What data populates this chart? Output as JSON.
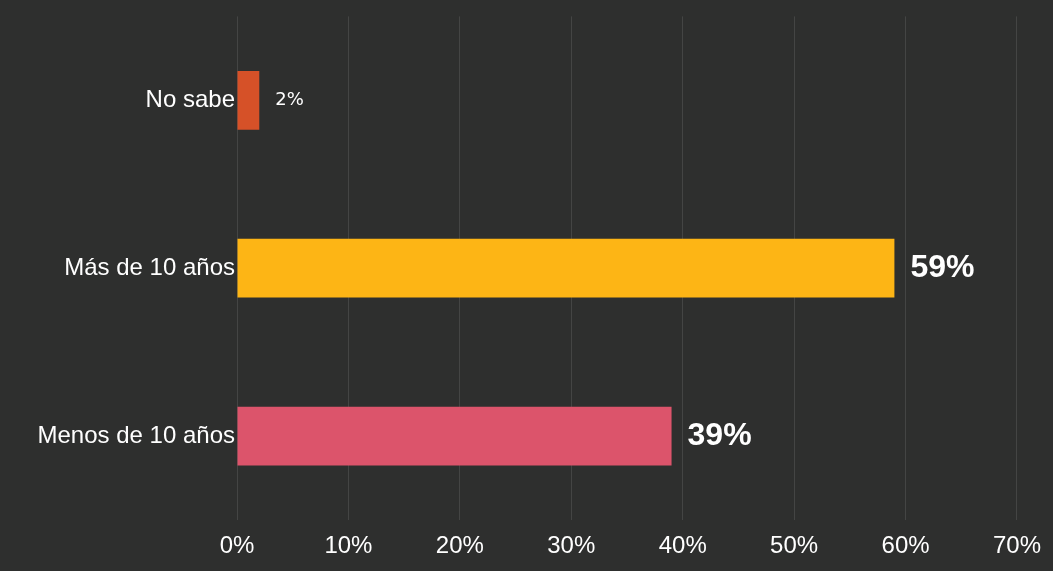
{
  "chart_data": {
    "type": "bar",
    "orientation": "horizontal",
    "categories": [
      "No sabe",
      "Más de 10 años",
      "Menos de 10 años"
    ],
    "values": [
      2,
      59,
      39
    ],
    "colors": [
      "#d65128",
      "#fdb515",
      "#dc546b"
    ],
    "value_labels": [
      "2%",
      "59%",
      "39%"
    ],
    "xlim": [
      0,
      70
    ],
    "xticks": [
      {
        "value": 0,
        "label": "0%"
      },
      {
        "value": 10,
        "label": "10%"
      },
      {
        "value": 20,
        "label": "20%"
      },
      {
        "value": 30,
        "label": "30%"
      },
      {
        "value": 40,
        "label": "40%"
      },
      {
        "value": 50,
        "label": "50%"
      },
      {
        "value": 60,
        "label": "60%"
      },
      {
        "value": 70,
        "label": "70%"
      }
    ],
    "grid": "x",
    "legend": false
  }
}
